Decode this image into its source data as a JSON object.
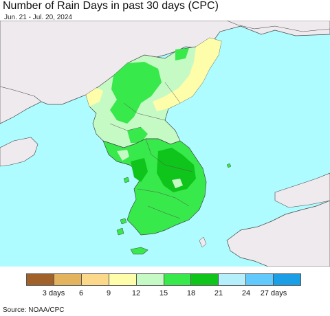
{
  "title": "Number of Rain Days in past 30 days (CPC)",
  "subtitle": "Jun. 21 - Jul. 20, 2024",
  "colors": {
    "ocean": "#aefcff",
    "land_outside": "#efeaee",
    "border": "#444444"
  },
  "legend": {
    "bins": [
      {
        "color": "#a0612a"
      },
      {
        "color": "#e3b35e"
      },
      {
        "color": "#fcd98a"
      },
      {
        "color": "#fdfdaa"
      },
      {
        "color": "#c5fac5"
      },
      {
        "color": "#37e94a"
      },
      {
        "color": "#0fc41a"
      },
      {
        "color": "#b5effc"
      },
      {
        "color": "#61c9fb"
      },
      {
        "color": "#1a9ee6"
      }
    ],
    "tick_labels": [
      "3 days",
      "6",
      "9",
      "12",
      "15",
      "18",
      "21",
      "24",
      "27 days"
    ]
  },
  "source": "Source: NOAA/CPC"
}
